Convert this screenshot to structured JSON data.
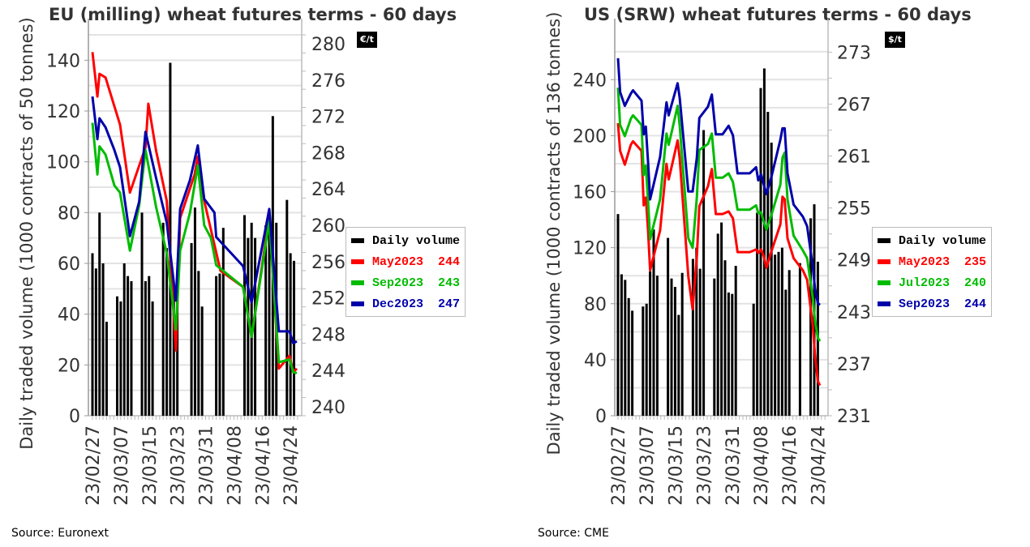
{
  "charts": [
    {
      "id": "eu",
      "title": "EU (milling) wheat futures terms - 60 days",
      "unit_badge": "€/t",
      "source": "Source: Euronext",
      "y_left_label": "Daily traded volume (1000 contracts of 50 tonnes)",
      "legend": [
        {
          "label": "Daily volume",
          "value": "",
          "color": "#000000"
        },
        {
          "label": "May2023",
          "value": "244",
          "color": "#ff0000"
        },
        {
          "label": "Sep2023",
          "value": "243",
          "color": "#00bb00"
        },
        {
          "label": "Dec2023",
          "value": "247",
          "color": "#0000aa"
        }
      ]
    },
    {
      "id": "us",
      "title": "US (SRW) wheat futures terms - 60 days",
      "unit_badge": "$/t",
      "source": "Source: CME",
      "y_left_label": "Daily traded volume (1000 contracts of 136 tonnes)",
      "legend": [
        {
          "label": "Daily volume",
          "value": "",
          "color": "#000000"
        },
        {
          "label": "May2023",
          "value": "235",
          "color": "#ff0000"
        },
        {
          "label": "Jul2023",
          "value": "240",
          "color": "#00bb00"
        },
        {
          "label": "Sep2023",
          "value": "244",
          "color": "#0000aa"
        }
      ]
    }
  ],
  "chart_data": [
    {
      "type": "bar+line",
      "title": "EU (milling) wheat futures terms - 60 days",
      "xlabel": "",
      "ylabel": "Daily traded volume (1000 contracts of 50 tonnes)",
      "y2label": "€/t",
      "x_tick_labels": [
        "23/02/27",
        "23/03/07",
        "23/03/15",
        "23/03/23",
        "23/03/31",
        "23/04/08",
        "23/04/16",
        "23/04/24"
      ],
      "x_tick_days": [
        0,
        8,
        16,
        24,
        32,
        40,
        48,
        56
      ],
      "x_range_days": [
        0,
        58
      ],
      "ylim": [
        0,
        150
      ],
      "y_ticks": [
        0,
        20,
        40,
        60,
        80,
        100,
        120,
        140
      ],
      "y2lim": [
        239,
        281
      ],
      "y2_ticks": [
        240,
        244,
        248,
        252,
        256,
        260,
        264,
        268,
        272,
        276,
        280
      ],
      "grid": true,
      "legend_position": "right",
      "volume": {
        "name": "Daily volume",
        "days": [
          0,
          1,
          2,
          3,
          4,
          7,
          8,
          9,
          10,
          11,
          14,
          15,
          16,
          17,
          20,
          21,
          22,
          23,
          24,
          25,
          28,
          29,
          30,
          31,
          32,
          35,
          36,
          37,
          38,
          43,
          44,
          45,
          46,
          49,
          50,
          51,
          52,
          55,
          56,
          57
        ],
        "values": [
          64,
          58,
          80,
          60,
          37,
          47,
          45,
          60,
          55,
          53,
          80,
          53,
          55,
          45,
          76,
          66,
          139,
          50,
          52,
          0,
          68,
          82,
          57,
          43,
          0,
          55,
          56,
          74,
          0,
          79,
          70,
          76,
          70,
          75,
          76,
          118,
          76,
          85,
          64,
          61
        ]
      },
      "series": [
        {
          "name": "May2023",
          "last": 244,
          "days": [
            0,
            1.4,
            2,
            3.7,
            7.8,
            10.6,
            15,
            15.8,
            18,
            21,
            23.6,
            24.8,
            28.9,
            29.8,
            31.6,
            36.2,
            42.6,
            45,
            50,
            52.7,
            55.7,
            56.8,
            57.8
          ],
          "values": [
            279.1,
            274.2,
            276.7,
            276.3,
            271.1,
            263.6,
            268.6,
            273.4,
            268.2,
            262.7,
            246.2,
            260.8,
            265.6,
            267.6,
            262.7,
            255.0,
            253.2,
            247.7,
            261.0,
            244.2,
            245.6,
            243.8,
            244.2
          ]
        },
        {
          "name": "Sep2023",
          "last": 243,
          "days": [
            0,
            1.4,
            2,
            3.7,
            6.2,
            7.8,
            10.6,
            13.2,
            15,
            18,
            21,
            23.6,
            24.8,
            27.6,
            29.8,
            31.6,
            33.5,
            35.0,
            42.6,
            45,
            50,
            52.7,
            55.7,
            56.8,
            57.8
          ],
          "values": [
            271.3,
            265.6,
            268.7,
            267.8,
            264.4,
            263.6,
            257.2,
            262.2,
            268.3,
            262.0,
            256.9,
            248.5,
            257.2,
            261.4,
            266.6,
            260.0,
            258.6,
            255.6,
            253.2,
            247.7,
            260.5,
            244.9,
            245.2,
            243.8,
            243.7
          ]
        },
        {
          "name": "Dec2023",
          "last": 247,
          "days": [
            0,
            1.4,
            2,
            3.7,
            6.2,
            7.8,
            10.6,
            13.2,
            15,
            18,
            21,
            23.6,
            24.8,
            27.6,
            29.8,
            31.6,
            34.5,
            35.0,
            42.6,
            45,
            50,
            52.7,
            55.7,
            56.8,
            57.8
          ],
          "values": [
            274.2,
            269.5,
            271.8,
            270.8,
            268.3,
            266.4,
            258.8,
            262.6,
            270.3,
            265.2,
            260.3,
            251.7,
            261.8,
            265.0,
            268.8,
            262.9,
            261.4,
            258.7,
            255.5,
            251.5,
            261.8,
            248.3,
            248.3,
            247.0,
            247.2
          ]
        }
      ]
    },
    {
      "type": "bar+line",
      "title": "US (SRW) wheat futures terms - 60 days",
      "xlabel": "",
      "ylabel": "Daily traded volume (1000 contracts of 136 tonnes)",
      "y2label": "$/t",
      "x_tick_labels": [
        "23/02/27",
        "23/03/07",
        "23/03/15",
        "23/03/23",
        "23/03/31",
        "23/04/08",
        "23/04/16",
        "23/04/24"
      ],
      "x_tick_days": [
        0,
        8,
        16,
        24,
        32,
        40,
        48,
        56
      ],
      "x_range_days": [
        0,
        58
      ],
      "ylim": [
        0,
        272
      ],
      "y_ticks": [
        0,
        40,
        80,
        120,
        160,
        200,
        240
      ],
      "y2lim": [
        231,
        275
      ],
      "y2_ticks": [
        231,
        237,
        243,
        249,
        255,
        261,
        267,
        273
      ],
      "grid": true,
      "legend_position": "right",
      "volume": {
        "name": "Daily volume",
        "days": [
          0,
          1,
          2,
          3,
          4,
          7,
          8,
          9,
          10,
          11,
          14,
          15,
          16,
          17,
          18,
          21,
          22,
          23,
          24,
          27,
          28,
          29,
          30,
          31,
          32,
          33,
          34,
          37,
          38,
          39,
          40,
          41,
          42,
          43,
          44,
          45,
          46,
          47,
          48,
          51,
          52,
          53,
          54,
          55,
          56,
          57
        ],
        "values": [
          144,
          101,
          97,
          84,
          75,
          78,
          80,
          103,
          133,
          100,
          127,
          98,
          92,
          72,
          102,
          112,
          120,
          105,
          204,
          98,
          130,
          138,
          111,
          88,
          87,
          107,
          0,
          0,
          80,
          145,
          234,
          248,
          217,
          195,
          115,
          117,
          120,
          90,
          104,
          109,
          0,
          0,
          141,
          151,
          110,
          0
        ]
      },
      "series": [
        {
          "name": "May2023",
          "last": 235,
          "days": [
            0,
            0.6,
            1.9,
            3.6,
            4.2,
            6.6,
            7.2,
            7.8,
            8.4,
            9.0,
            11.8,
            13.6,
            14.2,
            15.0,
            16.7,
            17.3,
            19.7,
            20.9,
            22.1,
            22.8,
            25.2,
            26.3,
            27.4,
            28.1,
            29.3,
            31.0,
            32.2,
            33.5,
            34.8,
            36.9,
            38.7,
            39.3,
            40.1,
            40.8,
            41.6,
            43.0,
            45.5,
            46.1,
            46.7,
            47.5,
            49.2,
            51.8,
            53.0,
            54.6,
            55.2,
            56.0,
            56.6
          ],
          "values": [
            264.8,
            261.6,
            260.0,
            262.3,
            262.7,
            261.6,
            255.3,
            256.2,
            252.5,
            247.8,
            252.4,
            260.1,
            258.3,
            259.7,
            262.8,
            260.7,
            247.1,
            243.3,
            249.4,
            255.2,
            257.5,
            259.5,
            254.3,
            254.3,
            254.3,
            254.6,
            253.8,
            249.9,
            249.9,
            249.9,
            250.2,
            249.8,
            250.2,
            249.5,
            248.1,
            250.0,
            253.1,
            256.3,
            256.0,
            251.5,
            249.2,
            247.8,
            246.7,
            241.4,
            238.0,
            235.0,
            234.5
          ]
        },
        {
          "name": "Jul2023",
          "last": 240,
          "days": [
            0,
            0.6,
            1.9,
            3.6,
            4.2,
            6.6,
            7.2,
            7.8,
            8.4,
            9.0,
            11.8,
            13.6,
            14.2,
            15.0,
            16.7,
            17.3,
            19.7,
            20.9,
            22.1,
            22.8,
            25.2,
            26.3,
            27.4,
            28.1,
            29.3,
            31.0,
            32.2,
            33.5,
            34.8,
            36.9,
            38.7,
            39.3,
            40.1,
            40.8,
            41.6,
            43.0,
            45.5,
            46.1,
            46.7,
            47.5,
            49.2,
            51.8,
            53.0,
            54.6,
            55.2,
            56.0,
            56.6
          ],
          "values": [
            268.9,
            264.6,
            263.3,
            265.3,
            265.7,
            264.6,
            258.8,
            259.9,
            256.0,
            251.4,
            256.0,
            263.6,
            262.3,
            263.7,
            266.8,
            264.5,
            251.5,
            250.4,
            256.2,
            261.7,
            262.4,
            263.6,
            258.5,
            258.5,
            258.5,
            259.0,
            258.0,
            254.8,
            254.8,
            254.8,
            255.3,
            254.4,
            254.5,
            253.5,
            252.5,
            254.2,
            257.7,
            260.8,
            261.4,
            256.0,
            251.8,
            250.1,
            249.2,
            244.6,
            242.0,
            240.0,
            239.6
          ]
        },
        {
          "name": "Sep2023",
          "last": 244,
          "days": [
            0,
            0.6,
            1.9,
            3.6,
            4.2,
            6.6,
            7.2,
            7.8,
            8.4,
            9.0,
            11.8,
            13.6,
            14.2,
            15.0,
            16.7,
            17.3,
            19.7,
            20.9,
            22.1,
            22.8,
            25.2,
            26.3,
            27.4,
            28.1,
            29.3,
            31.0,
            32.2,
            33.5,
            34.8,
            36.9,
            38.7,
            39.3,
            40.1,
            40.8,
            41.6,
            43.0,
            45.5,
            46.1,
            46.7,
            47.5,
            49.2,
            51.8,
            53.0,
            54.6,
            55.2,
            56.0,
            56.6
          ],
          "values": [
            272.3,
            268.4,
            266.8,
            268.2,
            268.6,
            267.4,
            263.5,
            264.4,
            260.4,
            256.0,
            260.9,
            267.2,
            265.7,
            266.9,
            269.4,
            267.7,
            256.9,
            256.9,
            260.8,
            265.4,
            266.7,
            268.1,
            263.5,
            263.5,
            263.5,
            264.5,
            263.4,
            259.0,
            259.0,
            259.0,
            259.7,
            258.2,
            258.9,
            257.8,
            256.6,
            258.6,
            262.9,
            264.2,
            264.2,
            259.0,
            255.4,
            254.0,
            252.9,
            248.2,
            245.7,
            244.0,
            243.8
          ]
        }
      ]
    }
  ]
}
